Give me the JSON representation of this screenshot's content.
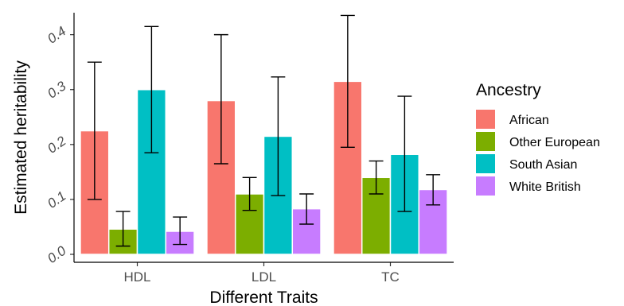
{
  "chart_data": {
    "type": "bar",
    "title": "",
    "xlabel": "Different Traits",
    "ylabel": "Estimated heritability",
    "categories": [
      "HDL",
      "LDL",
      "TC"
    ],
    "ylim": [
      0,
      0.44
    ],
    "yticks": [
      "0.0",
      "0.1",
      "0.2",
      "0.3",
      "0.4"
    ],
    "yticks_values": [
      0.0,
      0.1,
      0.2,
      0.3,
      0.4
    ],
    "grid": false,
    "legend_position": "right",
    "legend_title": "Ancestry",
    "series": [
      {
        "name": "African",
        "color": "#F8766D",
        "values": [
          0.225,
          0.28,
          0.315
        ],
        "lower": [
          0.1,
          0.165,
          0.195
        ],
        "upper": [
          0.35,
          0.4,
          0.435
        ]
      },
      {
        "name": "Other European",
        "color": "#7CAE00",
        "values": [
          0.046,
          0.11,
          0.14
        ],
        "lower": [
          0.015,
          0.08,
          0.11
        ],
        "upper": [
          0.078,
          0.14,
          0.17
        ]
      },
      {
        "name": "South Asian",
        "color": "#00BFC4",
        "values": [
          0.3,
          0.215,
          0.182
        ],
        "lower": [
          0.185,
          0.107,
          0.078
        ],
        "upper": [
          0.415,
          0.323,
          0.288
        ]
      },
      {
        "name": "White British",
        "color": "#C77CFF",
        "values": [
          0.042,
          0.083,
          0.118
        ],
        "lower": [
          0.018,
          0.055,
          0.09
        ],
        "upper": [
          0.068,
          0.11,
          0.145
        ]
      }
    ]
  }
}
